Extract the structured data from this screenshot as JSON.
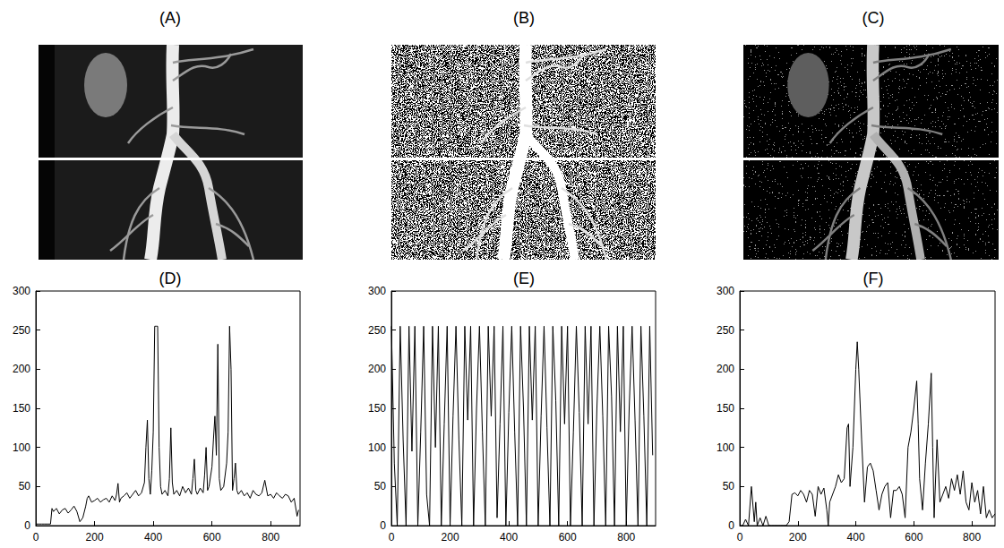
{
  "images": [
    {
      "title": "(A)"
    },
    {
      "title": "(B)"
    },
    {
      "title": "(C)"
    }
  ],
  "chart_data": [
    {
      "type": "line",
      "title": "(D)",
      "color": "#000000",
      "grid": false,
      "xlim": [
        0,
        900
      ],
      "ylim": [
        0,
        300
      ],
      "xticks": [
        0,
        200,
        400,
        600,
        800
      ],
      "yticks": [
        0,
        50,
        100,
        150,
        200,
        250,
        300
      ],
      "x": [
        0,
        10,
        20,
        30,
        40,
        50,
        55,
        60,
        70,
        80,
        90,
        100,
        110,
        120,
        130,
        140,
        150,
        160,
        170,
        175,
        180,
        190,
        200,
        210,
        220,
        230,
        240,
        250,
        260,
        270,
        275,
        280,
        285,
        290,
        300,
        310,
        320,
        330,
        340,
        350,
        360,
        370,
        375,
        380,
        385,
        390,
        395,
        400,
        405,
        410,
        415,
        420,
        425,
        430,
        440,
        450,
        455,
        460,
        465,
        470,
        480,
        490,
        500,
        510,
        520,
        530,
        535,
        540,
        545,
        550,
        560,
        570,
        575,
        580,
        585,
        590,
        600,
        605,
        610,
        615,
        620,
        625,
        630,
        640,
        650,
        655,
        660,
        665,
        670,
        675,
        680,
        685,
        690,
        700,
        710,
        720,
        730,
        740,
        750,
        760,
        770,
        780,
        790,
        800,
        810,
        820,
        830,
        840,
        850,
        860,
        870,
        880,
        890,
        895
      ],
      "values": [
        2,
        2,
        2,
        2,
        2,
        2,
        22,
        18,
        22,
        15,
        20,
        22,
        16,
        20,
        25,
        18,
        5,
        10,
        25,
        35,
        38,
        30,
        32,
        35,
        30,
        33,
        35,
        30,
        38,
        32,
        40,
        54,
        30,
        35,
        38,
        42,
        35,
        40,
        45,
        38,
        42,
        55,
        100,
        135,
        60,
        40,
        70,
        120,
        255,
        255,
        255,
        100,
        50,
        40,
        45,
        38,
        60,
        125,
        55,
        40,
        45,
        38,
        50,
        42,
        48,
        40,
        60,
        85,
        45,
        40,
        48,
        42,
        65,
        100,
        45,
        50,
        75,
        110,
        140,
        90,
        232,
        60,
        45,
        50,
        80,
        120,
        255,
        200,
        45,
        60,
        80,
        45,
        40,
        45,
        38,
        42,
        35,
        45,
        40,
        38,
        42,
        58,
        38,
        40,
        35,
        42,
        38,
        35,
        40,
        38,
        30,
        35,
        12,
        20
      ]
    },
    {
      "type": "line",
      "title": "(E)",
      "color": "#000000",
      "grid": false,
      "xlim": [
        0,
        900
      ],
      "ylim": [
        0,
        300
      ],
      "xticks": [
        0,
        200,
        400,
        600,
        800
      ],
      "yticks": [
        0,
        50,
        100,
        150,
        200,
        250,
        300
      ],
      "x": [
        0,
        10,
        20,
        30,
        40,
        50,
        60,
        70,
        80,
        90,
        100,
        110,
        120,
        130,
        140,
        150,
        160,
        170,
        180,
        190,
        200,
        210,
        220,
        230,
        240,
        250,
        260,
        270,
        280,
        290,
        300,
        310,
        320,
        330,
        340,
        350,
        360,
        370,
        380,
        390,
        400,
        410,
        420,
        430,
        440,
        450,
        460,
        470,
        480,
        490,
        500,
        510,
        520,
        530,
        540,
        550,
        560,
        570,
        580,
        590,
        600,
        610,
        620,
        630,
        640,
        650,
        660,
        670,
        680,
        690,
        700,
        710,
        720,
        730,
        740,
        750,
        760,
        770,
        780,
        790,
        800,
        810,
        820,
        830,
        840,
        850,
        860,
        870,
        880,
        890
      ],
      "values": [
        255,
        80,
        0,
        255,
        110,
        0,
        255,
        95,
        255,
        0,
        120,
        255,
        40,
        0,
        255,
        100,
        255,
        0,
        130,
        255,
        0,
        140,
        255,
        110,
        0,
        255,
        135,
        255,
        0,
        150,
        255,
        120,
        0,
        255,
        140,
        255,
        10,
        130,
        255,
        0,
        145,
        255,
        120,
        0,
        255,
        150,
        0,
        255,
        135,
        255,
        0,
        140,
        255,
        125,
        0,
        255,
        160,
        0,
        255,
        130,
        255,
        0,
        120,
        255,
        145,
        0,
        255,
        130,
        255,
        0,
        150,
        255,
        140,
        0,
        255,
        165,
        0,
        255,
        120,
        255,
        0,
        150,
        255,
        135,
        0,
        255,
        140,
        0,
        255,
        90
      ]
    },
    {
      "type": "line",
      "title": "(F)",
      "color": "#000000",
      "grid": false,
      "xlim": [
        0,
        880
      ],
      "ylim": [
        0,
        300
      ],
      "xticks": [
        0,
        200,
        400,
        600,
        800
      ],
      "yticks": [
        0,
        50,
        100,
        150,
        200,
        250,
        300
      ],
      "x": [
        0,
        10,
        20,
        30,
        40,
        50,
        55,
        60,
        70,
        80,
        90,
        100,
        110,
        120,
        130,
        140,
        150,
        160,
        170,
        180,
        190,
        200,
        210,
        220,
        230,
        240,
        250,
        260,
        270,
        280,
        290,
        300,
        305,
        310,
        320,
        330,
        340,
        350,
        360,
        370,
        375,
        380,
        390,
        400,
        405,
        410,
        420,
        430,
        440,
        450,
        460,
        470,
        480,
        490,
        500,
        510,
        520,
        530,
        540,
        550,
        560,
        570,
        580,
        590,
        600,
        610,
        615,
        620,
        630,
        640,
        650,
        660,
        665,
        670,
        680,
        690,
        700,
        710,
        720,
        730,
        740,
        750,
        760,
        770,
        780,
        790,
        800,
        810,
        820,
        830,
        840,
        850,
        860,
        870,
        880
      ],
      "values": [
        0,
        0,
        8,
        0,
        50,
        5,
        30,
        0,
        10,
        0,
        12,
        0,
        0,
        0,
        0,
        0,
        0,
        0,
        5,
        40,
        42,
        38,
        45,
        40,
        30,
        45,
        40,
        12,
        50,
        40,
        48,
        20,
        0,
        30,
        40,
        50,
        65,
        55,
        60,
        125,
        130,
        50,
        100,
        200,
        235,
        200,
        110,
        30,
        75,
        80,
        70,
        45,
        20,
        40,
        50,
        55,
        10,
        45,
        45,
        50,
        40,
        10,
        100,
        120,
        150,
        185,
        130,
        60,
        20,
        80,
        130,
        195,
        100,
        10,
        110,
        30,
        40,
        50,
        35,
        60,
        45,
        65,
        40,
        70,
        30,
        20,
        55,
        30,
        45,
        15,
        50,
        10,
        20,
        10,
        15
      ]
    }
  ]
}
